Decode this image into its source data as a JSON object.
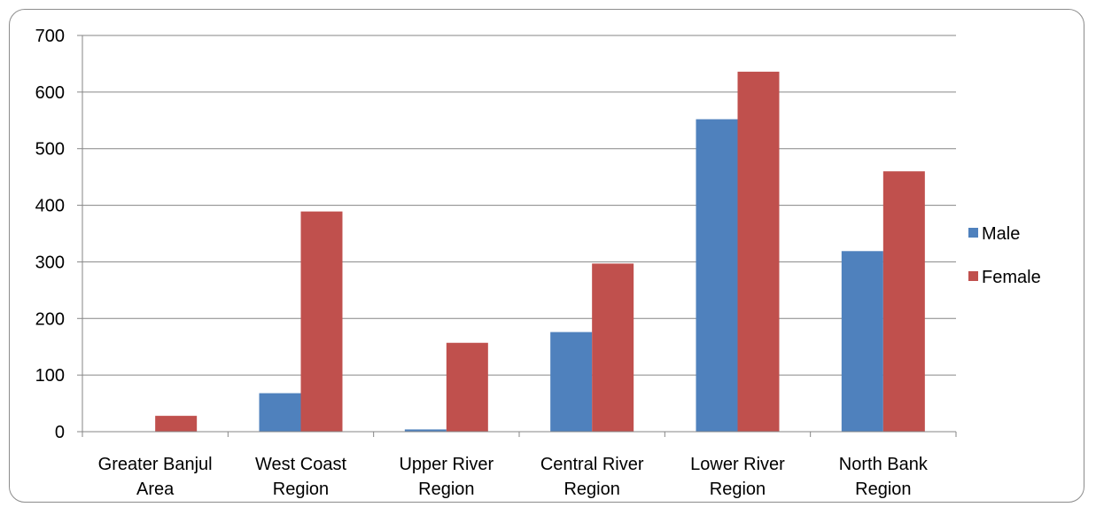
{
  "chart_data": {
    "type": "bar",
    "title": "",
    "xlabel": "",
    "ylabel": "",
    "categories": [
      [
        "Greater Banjul",
        "Area"
      ],
      [
        "West Coast",
        "Region"
      ],
      [
        "Upper River",
        "Region"
      ],
      [
        "Central River",
        "Region"
      ],
      [
        "Lower River",
        "Region"
      ],
      [
        "North Bank",
        "Region"
      ]
    ],
    "series": [
      {
        "name": "Male",
        "color": "#4F81BD",
        "values": [
          0,
          68,
          4,
          176,
          552,
          319
        ]
      },
      {
        "name": "Female",
        "color": "#C0504D",
        "values": [
          28,
          389,
          157,
          297,
          636,
          460
        ]
      }
    ],
    "ylim": [
      0,
      700
    ],
    "yticks": [
      0,
      100,
      200,
      300,
      400,
      500,
      600,
      700
    ],
    "grid": true,
    "legend": "right"
  }
}
